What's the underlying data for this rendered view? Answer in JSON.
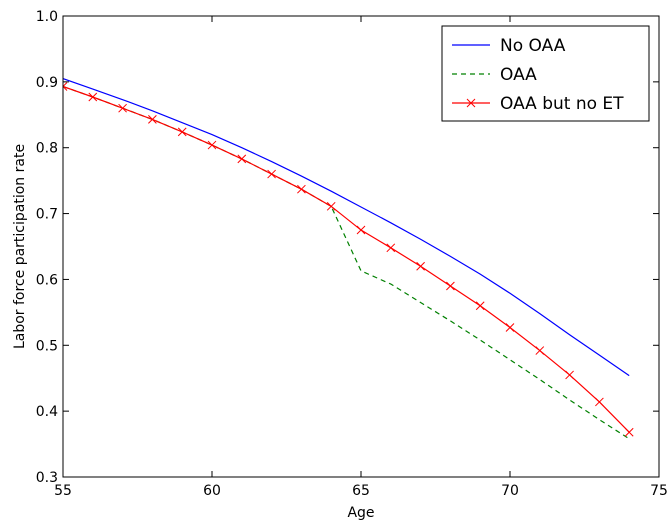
{
  "chart_data": {
    "type": "line",
    "xlabel": "Age",
    "ylabel": "Labor force participation rate",
    "xlim": [
      55,
      75
    ],
    "ylim": [
      0.3,
      1.0
    ],
    "xticks": [
      55,
      60,
      65,
      70,
      75
    ],
    "xtick_labels": [
      "55",
      "60",
      "65",
      "70",
      "75"
    ],
    "yticks": [
      0.3,
      0.4,
      0.5,
      0.6,
      0.7,
      0.8,
      0.9,
      1.0
    ],
    "ytick_labels": [
      "0.3",
      "0.4",
      "0.5",
      "0.6",
      "0.7",
      "0.8",
      "0.9",
      "1.0"
    ],
    "grid": false,
    "legend_position": "top-right",
    "x": [
      55,
      56,
      57,
      58,
      59,
      60,
      61,
      62,
      63,
      64,
      65,
      66,
      67,
      68,
      69,
      70,
      71,
      72,
      73,
      74
    ],
    "series": [
      {
        "name": "No OAA",
        "color": "#0000ff",
        "style": "solid",
        "marker": "none",
        "values": [
          0.905,
          0.889,
          0.873,
          0.856,
          0.838,
          0.82,
          0.8,
          0.779,
          0.757,
          0.734,
          0.71,
          0.686,
          0.661,
          0.635,
          0.608,
          0.579,
          0.548,
          0.516,
          0.485,
          0.454
        ]
      },
      {
        "name": "OAA",
        "color": "#008000",
        "style": "dashed",
        "marker": "none",
        "values": [
          0.893,
          0.877,
          0.86,
          0.843,
          0.824,
          0.804,
          0.783,
          0.76,
          0.737,
          0.711,
          0.613,
          0.593,
          0.565,
          0.537,
          0.508,
          0.478,
          0.448,
          0.417,
          0.387,
          0.358
        ]
      },
      {
        "name": "OAA but no ET",
        "color": "#ff0000",
        "style": "solid",
        "marker": "x",
        "values": [
          0.893,
          0.877,
          0.86,
          0.843,
          0.824,
          0.804,
          0.783,
          0.76,
          0.737,
          0.711,
          0.675,
          0.648,
          0.62,
          0.59,
          0.56,
          0.527,
          0.492,
          0.455,
          0.414,
          0.368
        ]
      }
    ]
  }
}
